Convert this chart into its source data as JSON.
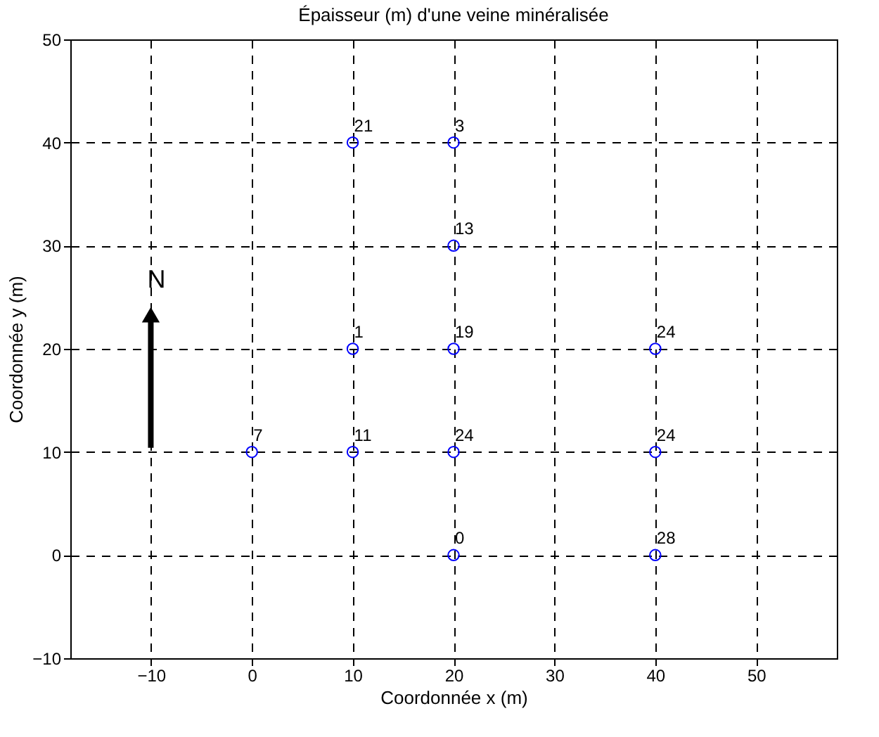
{
  "chart_data": {
    "type": "scatter",
    "title": "Épaisseur (m) d'une veine minéralisée",
    "xlabel": "Coordonnée x (m)",
    "ylabel": "Coordonnée y (m)",
    "x": [
      10,
      20,
      20,
      10,
      20,
      40,
      0,
      10,
      20,
      40,
      20,
      40
    ],
    "series": [
      {
        "color": "#0000ff",
        "values": [
          40,
          40,
          30,
          20,
          20,
          20,
          10,
          10,
          10,
          10,
          0,
          0
        ]
      }
    ],
    "xlim": [
      -18,
      58
    ],
    "ylim": [
      -10,
      50
    ],
    "xticks": [
      -10,
      0,
      10,
      20,
      30,
      40,
      50
    ],
    "yticks": [
      -10,
      0,
      10,
      20,
      30,
      40,
      50
    ],
    "grid": true,
    "marker": "circle",
    "annotations": [
      "N",
      {
        "text": "21",
        "x": 10,
        "y": 40
      },
      {
        "text": "3",
        "x": 20,
        "y": 40
      },
      {
        "text": "13",
        "x": 20,
        "y": 30
      },
      {
        "text": "1",
        "x": 10,
        "y": 20
      },
      {
        "text": "19",
        "x": 20,
        "y": 20
      },
      {
        "text": "24",
        "x": 40,
        "y": 20
      },
      {
        "text": "7",
        "x": 0,
        "y": 10
      },
      {
        "text": "11",
        "x": 10,
        "y": 10
      },
      {
        "text": "24",
        "x": 20,
        "y": 10
      },
      {
        "text": "24",
        "x": 40,
        "y": 10
      },
      {
        "text": "0",
        "x": 20,
        "y": 0
      },
      {
        "text": "28",
        "x": 40,
        "y": 0
      }
    ]
  }
}
